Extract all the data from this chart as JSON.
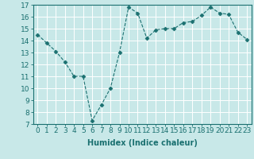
{
  "x": [
    0,
    1,
    2,
    3,
    4,
    5,
    6,
    7,
    8,
    9,
    10,
    11,
    12,
    13,
    14,
    15,
    16,
    17,
    18,
    19,
    20,
    21,
    22,
    23
  ],
  "y": [
    14.5,
    13.8,
    13.1,
    12.2,
    11.0,
    11.0,
    7.3,
    8.6,
    10.0,
    13.0,
    16.8,
    16.3,
    14.2,
    14.9,
    15.0,
    15.0,
    15.5,
    15.6,
    16.1,
    16.8,
    16.3,
    16.2,
    14.7,
    14.1
  ],
  "line_color": "#1a7070",
  "marker": "D",
  "marker_size": 2.5,
  "bg_color": "#c8e8e8",
  "grid_color": "#ffffff",
  "xlabel": "Humidex (Indice chaleur)",
  "xlim": [
    -0.5,
    23.5
  ],
  "ylim": [
    7,
    17
  ],
  "xticks": [
    0,
    1,
    2,
    3,
    4,
    5,
    6,
    7,
    8,
    9,
    10,
    11,
    12,
    13,
    14,
    15,
    16,
    17,
    18,
    19,
    20,
    21,
    22,
    23
  ],
  "yticks": [
    7,
    8,
    9,
    10,
    11,
    12,
    13,
    14,
    15,
    16,
    17
  ],
  "xlabel_fontsize": 7,
  "tick_fontsize": 6.5
}
